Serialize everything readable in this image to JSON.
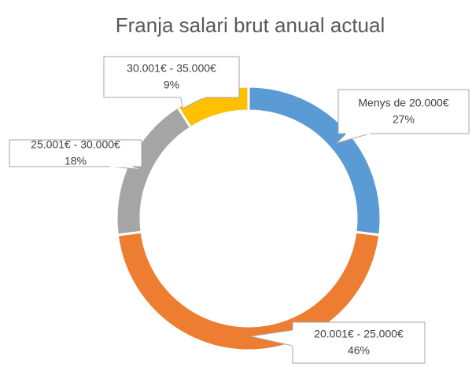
{
  "chart_data": {
    "type": "donut",
    "title": "Franja salari brut anual actual",
    "categories": [
      "Menys de 20.000€",
      "20.001€ - 25.000€",
      "25.001€ - 30.000€",
      "30.001€ - 35.000€"
    ],
    "values": [
      27,
      46,
      18,
      9
    ],
    "value_labels": [
      "27%",
      "46%",
      "18%",
      "9%"
    ],
    "colors": [
      "#5b9bd5",
      "#ed7d31",
      "#a5a5a5",
      "#ffc000"
    ]
  }
}
